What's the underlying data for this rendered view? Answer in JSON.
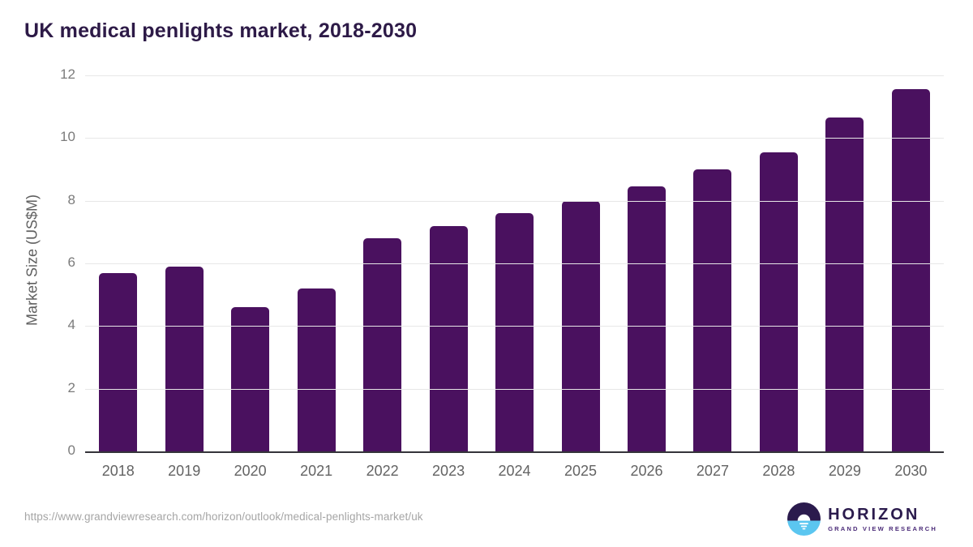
{
  "chart_data": {
    "type": "bar",
    "title": "UK medical penlights market, 2018-2030",
    "categories": [
      "2018",
      "2019",
      "2020",
      "2021",
      "2022",
      "2023",
      "2024",
      "2025",
      "2026",
      "2027",
      "2028",
      "2029",
      "2030"
    ],
    "values": [
      5.7,
      5.9,
      4.6,
      5.2,
      6.8,
      7.2,
      7.6,
      8.0,
      8.45,
      9.0,
      9.55,
      10.65,
      11.55
    ],
    "xlabel": "",
    "ylabel": "Market Size (US$M)",
    "ylim": [
      0,
      12
    ],
    "yticks": [
      0,
      2,
      4,
      6,
      8,
      10,
      12
    ],
    "grid": true,
    "legend_position": "none",
    "bar_color": "#4a115f"
  },
  "footer": {
    "source_url": "https://www.grandviewresearch.com/horizon/outlook/medical-penlights-market/uk",
    "logo": {
      "brand": "HORIZON",
      "subtitle": "GRAND VIEW RESEARCH",
      "icon": "horizon-sun-icon"
    }
  },
  "colors": {
    "bar": "#4a115f",
    "title_text": "#2d1a47",
    "axis_line": "#35343a",
    "gridline": "#e7e7e7",
    "tick_label": "#7b7b7b",
    "year_label": "#636363",
    "url_text": "#a5a5a5",
    "logo_dark_purple": "#2b1b4d",
    "logo_light_blue": "#5bc6f0",
    "logo_sub_purple": "#4a2a78"
  }
}
